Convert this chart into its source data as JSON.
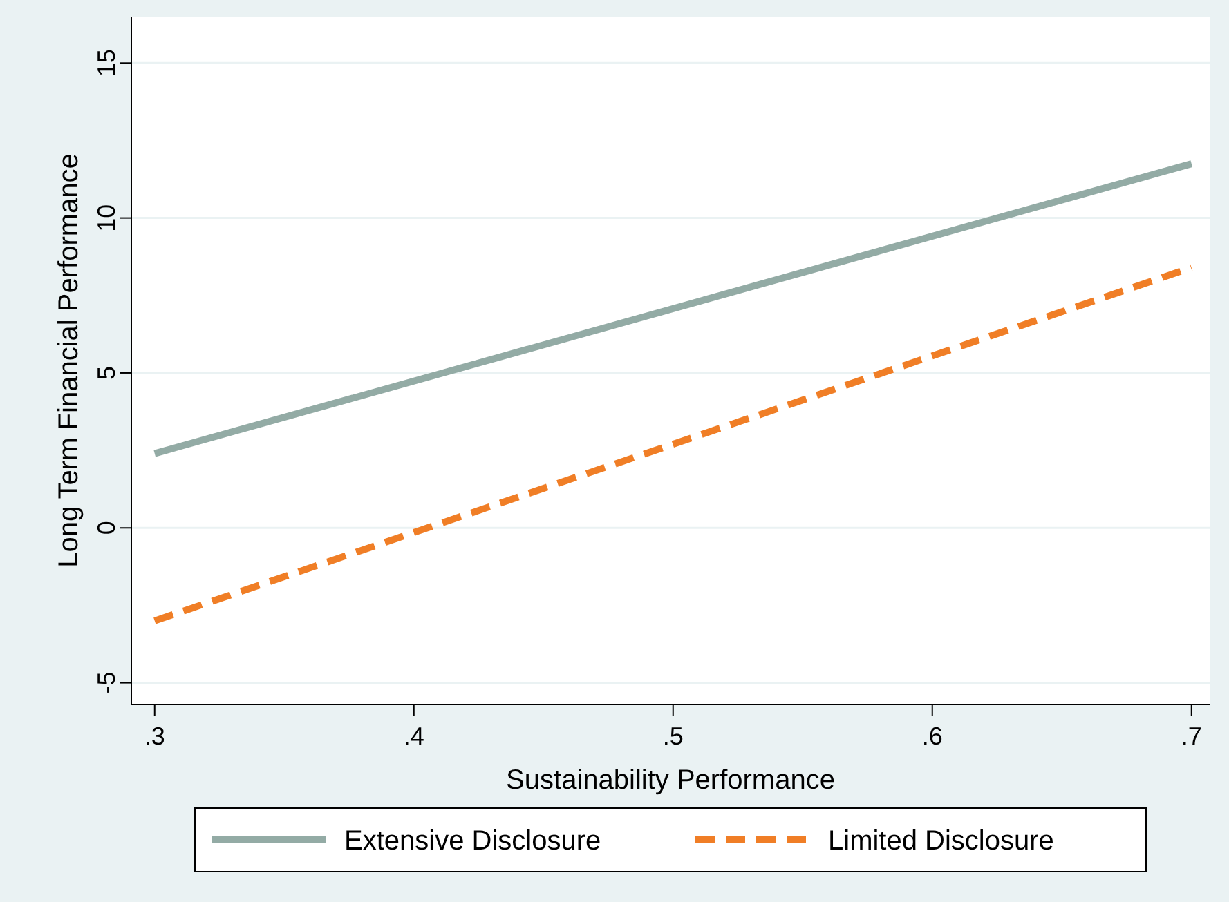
{
  "chart_data": {
    "type": "line",
    "xlabel": "Sustainability Performance",
    "ylabel": "Long Term Financial Performance",
    "x": [
      0.3,
      0.7
    ],
    "series": [
      {
        "name": "Extensive Disclosure",
        "color": "#93aba5",
        "values": [
          2.4,
          11.75
        ],
        "line_style": "solid"
      },
      {
        "name": "Limited Disclosure",
        "color": "#f07e26",
        "values": [
          -3.0,
          8.4
        ],
        "line_style": "dashed"
      }
    ],
    "xlim": [
      0.291,
      0.707
    ],
    "xticks": [
      {
        "value": 0.3,
        "label": ".3"
      },
      {
        "value": 0.4,
        "label": ".4"
      },
      {
        "value": 0.5,
        "label": ".5"
      },
      {
        "value": 0.6,
        "label": ".6"
      },
      {
        "value": 0.7,
        "label": ".7"
      }
    ],
    "ylim": [
      -5.7,
      16.5
    ],
    "yticks": [
      -5,
      0,
      5,
      10,
      15
    ],
    "grid": "y",
    "legend": "bottom",
    "marker": "none"
  }
}
